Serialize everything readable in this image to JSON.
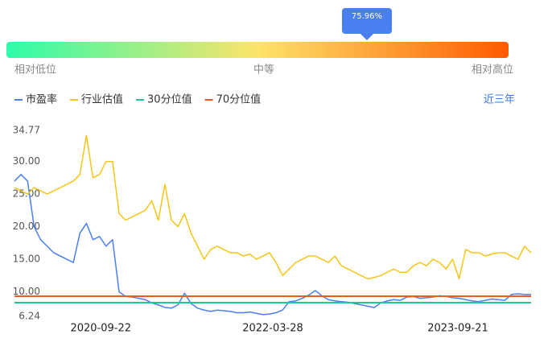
{
  "gauge": {
    "value": 75.96,
    "value_label": "75.96%",
    "low_label": "相对低位",
    "mid_label": "中等",
    "high_label": "相对高位"
  },
  "range_label": "近三年",
  "chart_data": {
    "type": "line",
    "xlim": [
      0,
      79
    ],
    "xticks": [
      {
        "value": 13.2,
        "label": "2020-09-22"
      },
      {
        "value": 39.5,
        "label": "2022-03-28"
      },
      {
        "value": 67.8,
        "label": "2023-09-21"
      }
    ],
    "ylim": [
      6.24,
      34.77
    ],
    "yticks": [
      6.24,
      {
        "value": 10,
        "label": "10.00"
      },
      {
        "value": 15,
        "label": "15.00"
      },
      {
        "value": 20,
        "label": "20.00"
      },
      {
        "value": 25,
        "label": "25.00"
      },
      {
        "value": 30,
        "label": "30.00"
      },
      34.77
    ],
    "series": [
      {
        "name": "市盈率",
        "color": "#4a7ff0",
        "values": [
          27,
          28,
          27,
          20,
          18,
          17,
          16,
          15.5,
          15,
          14.5,
          19,
          20.5,
          18,
          18.5,
          17,
          18,
          10,
          9.3,
          9.2,
          9,
          8.8,
          8.3,
          8,
          7.6,
          7.5,
          8,
          9.8,
          8.2,
          7.5,
          7.2,
          7,
          7.2,
          7.1,
          7,
          6.8,
          6.8,
          6.9,
          6.7,
          6.5,
          6.6,
          6.8,
          7.2,
          8.5,
          8.6,
          9,
          9.5,
          10.2,
          9.4,
          8.8,
          8.6,
          8.5,
          8.4,
          8.2,
          8,
          7.8,
          7.6,
          8.3,
          8.6,
          8.8,
          8.7,
          9.2,
          9.3,
          9,
          9.1,
          9.2,
          9.4,
          9.3,
          9.1,
          9,
          8.8,
          8.6,
          8.5,
          8.7,
          8.9,
          8.8,
          8.7,
          9.6,
          9.7,
          9.6,
          9.6
        ]
      },
      {
        "name": "行业估值",
        "color": "#f5c518",
        "values": [
          26,
          25.5,
          25,
          26,
          25.5,
          25,
          25.5,
          26,
          26.5,
          27,
          28,
          34,
          27.5,
          28,
          30,
          30,
          22,
          21,
          21.5,
          22,
          22.5,
          24,
          21,
          26.5,
          21,
          20,
          22,
          19,
          17,
          15,
          16.5,
          17,
          16.5,
          16,
          16,
          15.5,
          15.8,
          15,
          15.5,
          16,
          14.5,
          12.5,
          13.5,
          14.5,
          15,
          15.5,
          15.5,
          15,
          14.5,
          15.5,
          14,
          13.5,
          13,
          12.5,
          12,
          12.2,
          12.5,
          13,
          13.5,
          13,
          13,
          14,
          14.5,
          14,
          15,
          14.5,
          13.5,
          15,
          12,
          16.5,
          16,
          16,
          15.5,
          15.8,
          16,
          16,
          15.5,
          15,
          17,
          16
        ]
      },
      {
        "name": "30分位值",
        "color": "#1ec98a",
        "value": 8.34
      },
      {
        "name": "70分位值",
        "color": "#f05a1e",
        "value": 9.33
      }
    ]
  }
}
